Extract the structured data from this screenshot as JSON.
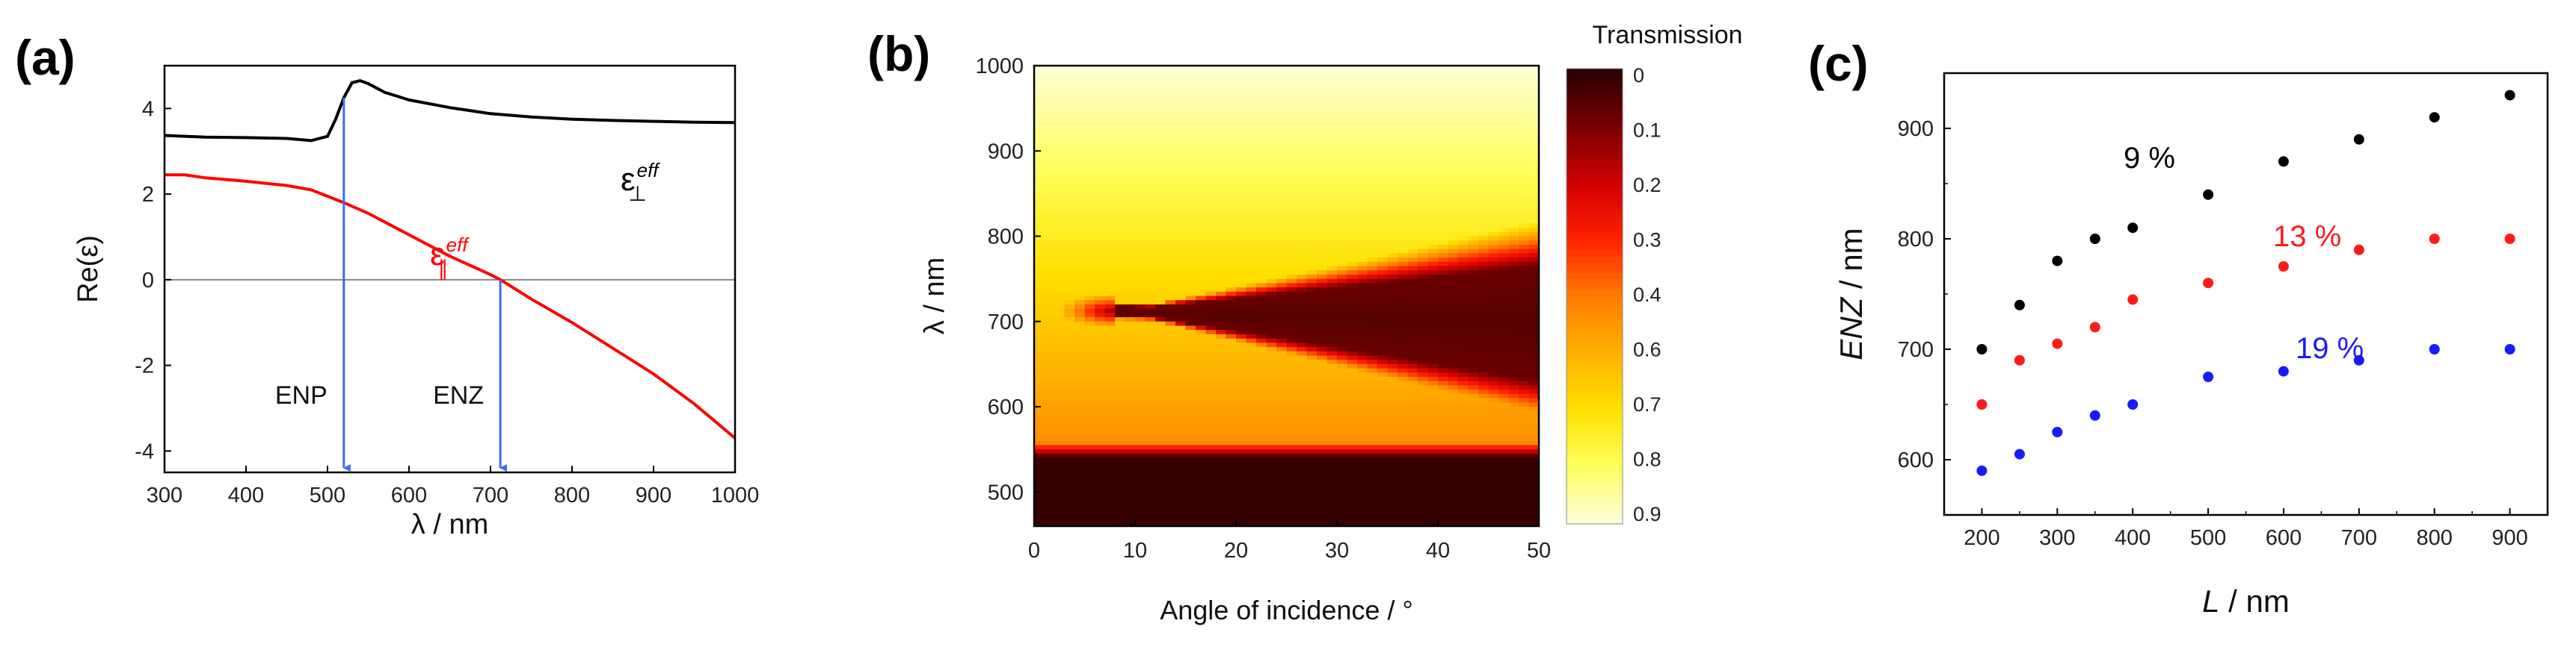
{
  "chart_data": [
    {
      "panel": "(a)",
      "type": "line",
      "xlabel": "λ / nm",
      "ylabel": "Re(ε)",
      "xlim": [
        300,
        1000
      ],
      "ylim": [
        -4.5,
        5
      ],
      "xticks": [
        "300",
        "400",
        "500",
        "600",
        "700",
        "800",
        "900",
        "1000"
      ],
      "yticks": [
        "-4",
        "-2",
        "0",
        "2",
        "4"
      ],
      "series": [
        {
          "name": "ε⊥eff",
          "color": "#000000",
          "x": [
            300,
            350,
            400,
            450,
            480,
            500,
            510,
            520,
            530,
            540,
            550,
            570,
            600,
            650,
            700,
            750,
            800,
            850,
            900,
            950,
            1000
          ],
          "y": [
            3.37,
            3.33,
            3.32,
            3.3,
            3.25,
            3.35,
            3.75,
            4.25,
            4.6,
            4.65,
            4.58,
            4.38,
            4.2,
            4.02,
            3.88,
            3.8,
            3.75,
            3.72,
            3.7,
            3.68,
            3.67
          ]
        },
        {
          "name": "ε∥eff",
          "color": "#ff0000",
          "x": [
            300,
            325,
            350,
            400,
            450,
            480,
            500,
            520,
            550,
            600,
            650,
            700,
            712,
            750,
            800,
            850,
            900,
            950,
            1000
          ],
          "y": [
            2.45,
            2.45,
            2.38,
            2.3,
            2.2,
            2.1,
            1.95,
            1.8,
            1.55,
            1.05,
            0.55,
            0.12,
            0.0,
            -0.45,
            -1.0,
            -1.6,
            -2.2,
            -2.9,
            -3.7
          ]
        }
      ],
      "series_labels": {
        "perp": {
          "symbol": "ε",
          "sup": "eff",
          "sub": "⊥"
        },
        "par": {
          "symbol": "ε",
          "sup": "eff",
          "sub": "∥"
        }
      },
      "zero_line": 0,
      "annotations": [
        {
          "text": "ENP",
          "x": 520,
          "arrow_color": "#3b6cff"
        },
        {
          "text": "ENZ",
          "x": 712,
          "arrow_color": "#3b6cff"
        }
      ]
    },
    {
      "panel": "(b)",
      "type": "heatmap",
      "xlabel": "Angle of incidence / °",
      "ylabel": "λ / nm",
      "xlim": [
        0,
        50
      ],
      "ylim": [
        460,
        1000
      ],
      "xticks": [
        "0",
        "10",
        "20",
        "30",
        "40",
        "50"
      ],
      "yticks": [
        "500",
        "600",
        "700",
        "800",
        "900",
        "1000"
      ],
      "colorbar_title": "Transmission",
      "colorbar_ticks": [
        "0",
        "0.1",
        "0.2",
        "0.3",
        "0.4",
        "0.6",
        "0.7",
        "0.8",
        "0.9"
      ],
      "colormap": [
        "#2a0000",
        "#7a0000",
        "#d10000",
        "#ff2200",
        "#ff7a00",
        "#ffb000",
        "#ffe000",
        "#ffff5a",
        "#ffffd8"
      ],
      "description_fields": {
        "low_transmission_band": {
          "lambda_from": 460,
          "lambda_to": 560
        },
        "enz_wedge": {
          "tip_angle": 8,
          "tip_lambda": 712,
          "at_50deg_upper": 765,
          "at_50deg_lower": 630
        }
      }
    },
    {
      "panel": "(c)",
      "type": "scatter",
      "xlabel": "L / nm",
      "ylabel": "ENZ / nm",
      "xlim": [
        150,
        950
      ],
      "ylim": [
        550,
        950
      ],
      "xticks": [
        "200",
        "300",
        "400",
        "500",
        "600",
        "700",
        "800",
        "900"
      ],
      "yticks": [
        "600",
        "700",
        "800",
        "900"
      ],
      "series": [
        {
          "name": "9 %",
          "color": "#000000",
          "x": [
            200,
            250,
            300,
            350,
            400,
            500,
            600,
            700,
            800,
            900
          ],
          "y": [
            700,
            740,
            780,
            800,
            810,
            840,
            870,
            890,
            910,
            930
          ]
        },
        {
          "name": "13 %",
          "color": "#ff1a1a",
          "x": [
            200,
            250,
            300,
            350,
            400,
            500,
            600,
            700,
            800,
            900
          ],
          "y": [
            650,
            690,
            705,
            720,
            745,
            760,
            775,
            790,
            800,
            800
          ]
        },
        {
          "name": "19 %",
          "color": "#1a1aff",
          "x": [
            200,
            250,
            300,
            350,
            400,
            500,
            600,
            700,
            800,
            900
          ],
          "y": [
            590,
            605,
            625,
            640,
            650,
            675,
            680,
            690,
            700,
            700
          ]
        }
      ]
    }
  ]
}
